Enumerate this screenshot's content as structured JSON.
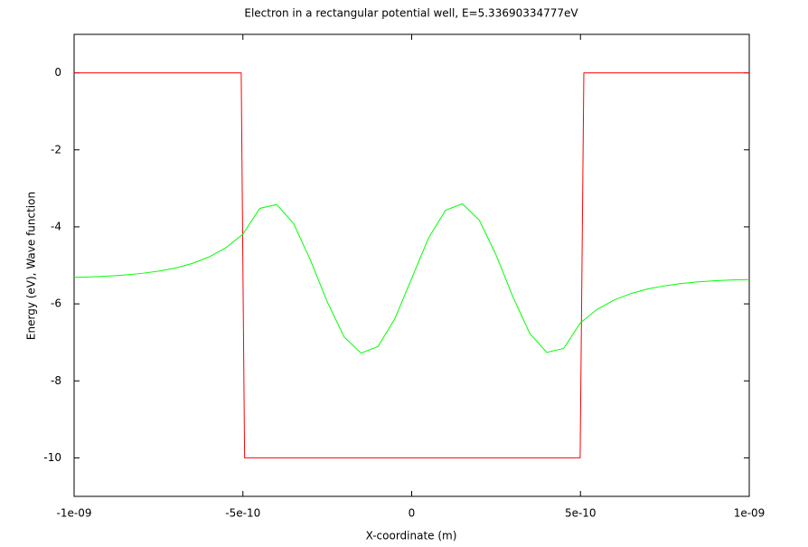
{
  "chart_data": {
    "type": "line",
    "title": "Electron in a rectangular potential well, E=5.33690334777eV",
    "xlabel": "X-coordinate (m)",
    "ylabel": "Energy (eV), Wave function",
    "xlim": [
      -1e-09,
      1e-09
    ],
    "ylim": [
      -11,
      1
    ],
    "xticks": [
      {
        "value": -1e-09,
        "label": "-1e-09"
      },
      {
        "value": -5e-10,
        "label": "-5e-10"
      },
      0,
      {
        "value": 5e-10,
        "label": "5e-10"
      },
      {
        "value": 1e-09,
        "label": "1e-09"
      }
    ],
    "yticks": [
      0,
      -2,
      -4,
      -6,
      -8,
      -10
    ],
    "grid": false,
    "series": [
      {
        "color": "#ff0000",
        "x": [
          -1e-09,
          -5.05e-10,
          -4.95e-10,
          4.99e-10,
          5.1e-10,
          1e-09
        ],
        "values": [
          0,
          0,
          -10,
          -10,
          0,
          0
        ]
      },
      {
        "color": "#00ff00",
        "x": [
          -1e-09,
          -9.5e-10,
          -9e-10,
          -8.5e-10,
          -8e-10,
          -7.5e-10,
          -7e-10,
          -6.5e-10,
          -6e-10,
          -5.5e-10,
          -5e-10,
          -4.5e-10,
          -4e-10,
          -3.5e-10,
          -3e-10,
          -2.5e-10,
          -2e-10,
          -1.5e-10,
          -1e-10,
          -5e-11,
          0,
          5e-11,
          1e-10,
          1.5e-10,
          2e-10,
          2.5e-10,
          3e-10,
          3.5e-10,
          4e-10,
          4.5e-10,
          5e-10,
          5.5e-10,
          6e-10,
          6.5e-10,
          7e-10,
          7.5e-10,
          8e-10,
          8.5e-10,
          9e-10,
          9.5e-10,
          1e-09
        ],
        "values": [
          -5.31,
          -5.3,
          -5.28,
          -5.25,
          -5.21,
          -5.15,
          -5.07,
          -4.95,
          -4.78,
          -4.54,
          -4.19,
          -3.52,
          -3.42,
          -3.91,
          -4.86,
          -5.95,
          -6.86,
          -7.28,
          -7.11,
          -6.39,
          -5.34,
          -4.29,
          -3.57,
          -3.4,
          -3.82,
          -4.73,
          -5.82,
          -6.77,
          -7.26,
          -7.16,
          -6.49,
          -6.14,
          -5.9,
          -5.73,
          -5.61,
          -5.53,
          -5.47,
          -5.43,
          -5.4,
          -5.38,
          -5.37
        ]
      }
    ]
  }
}
